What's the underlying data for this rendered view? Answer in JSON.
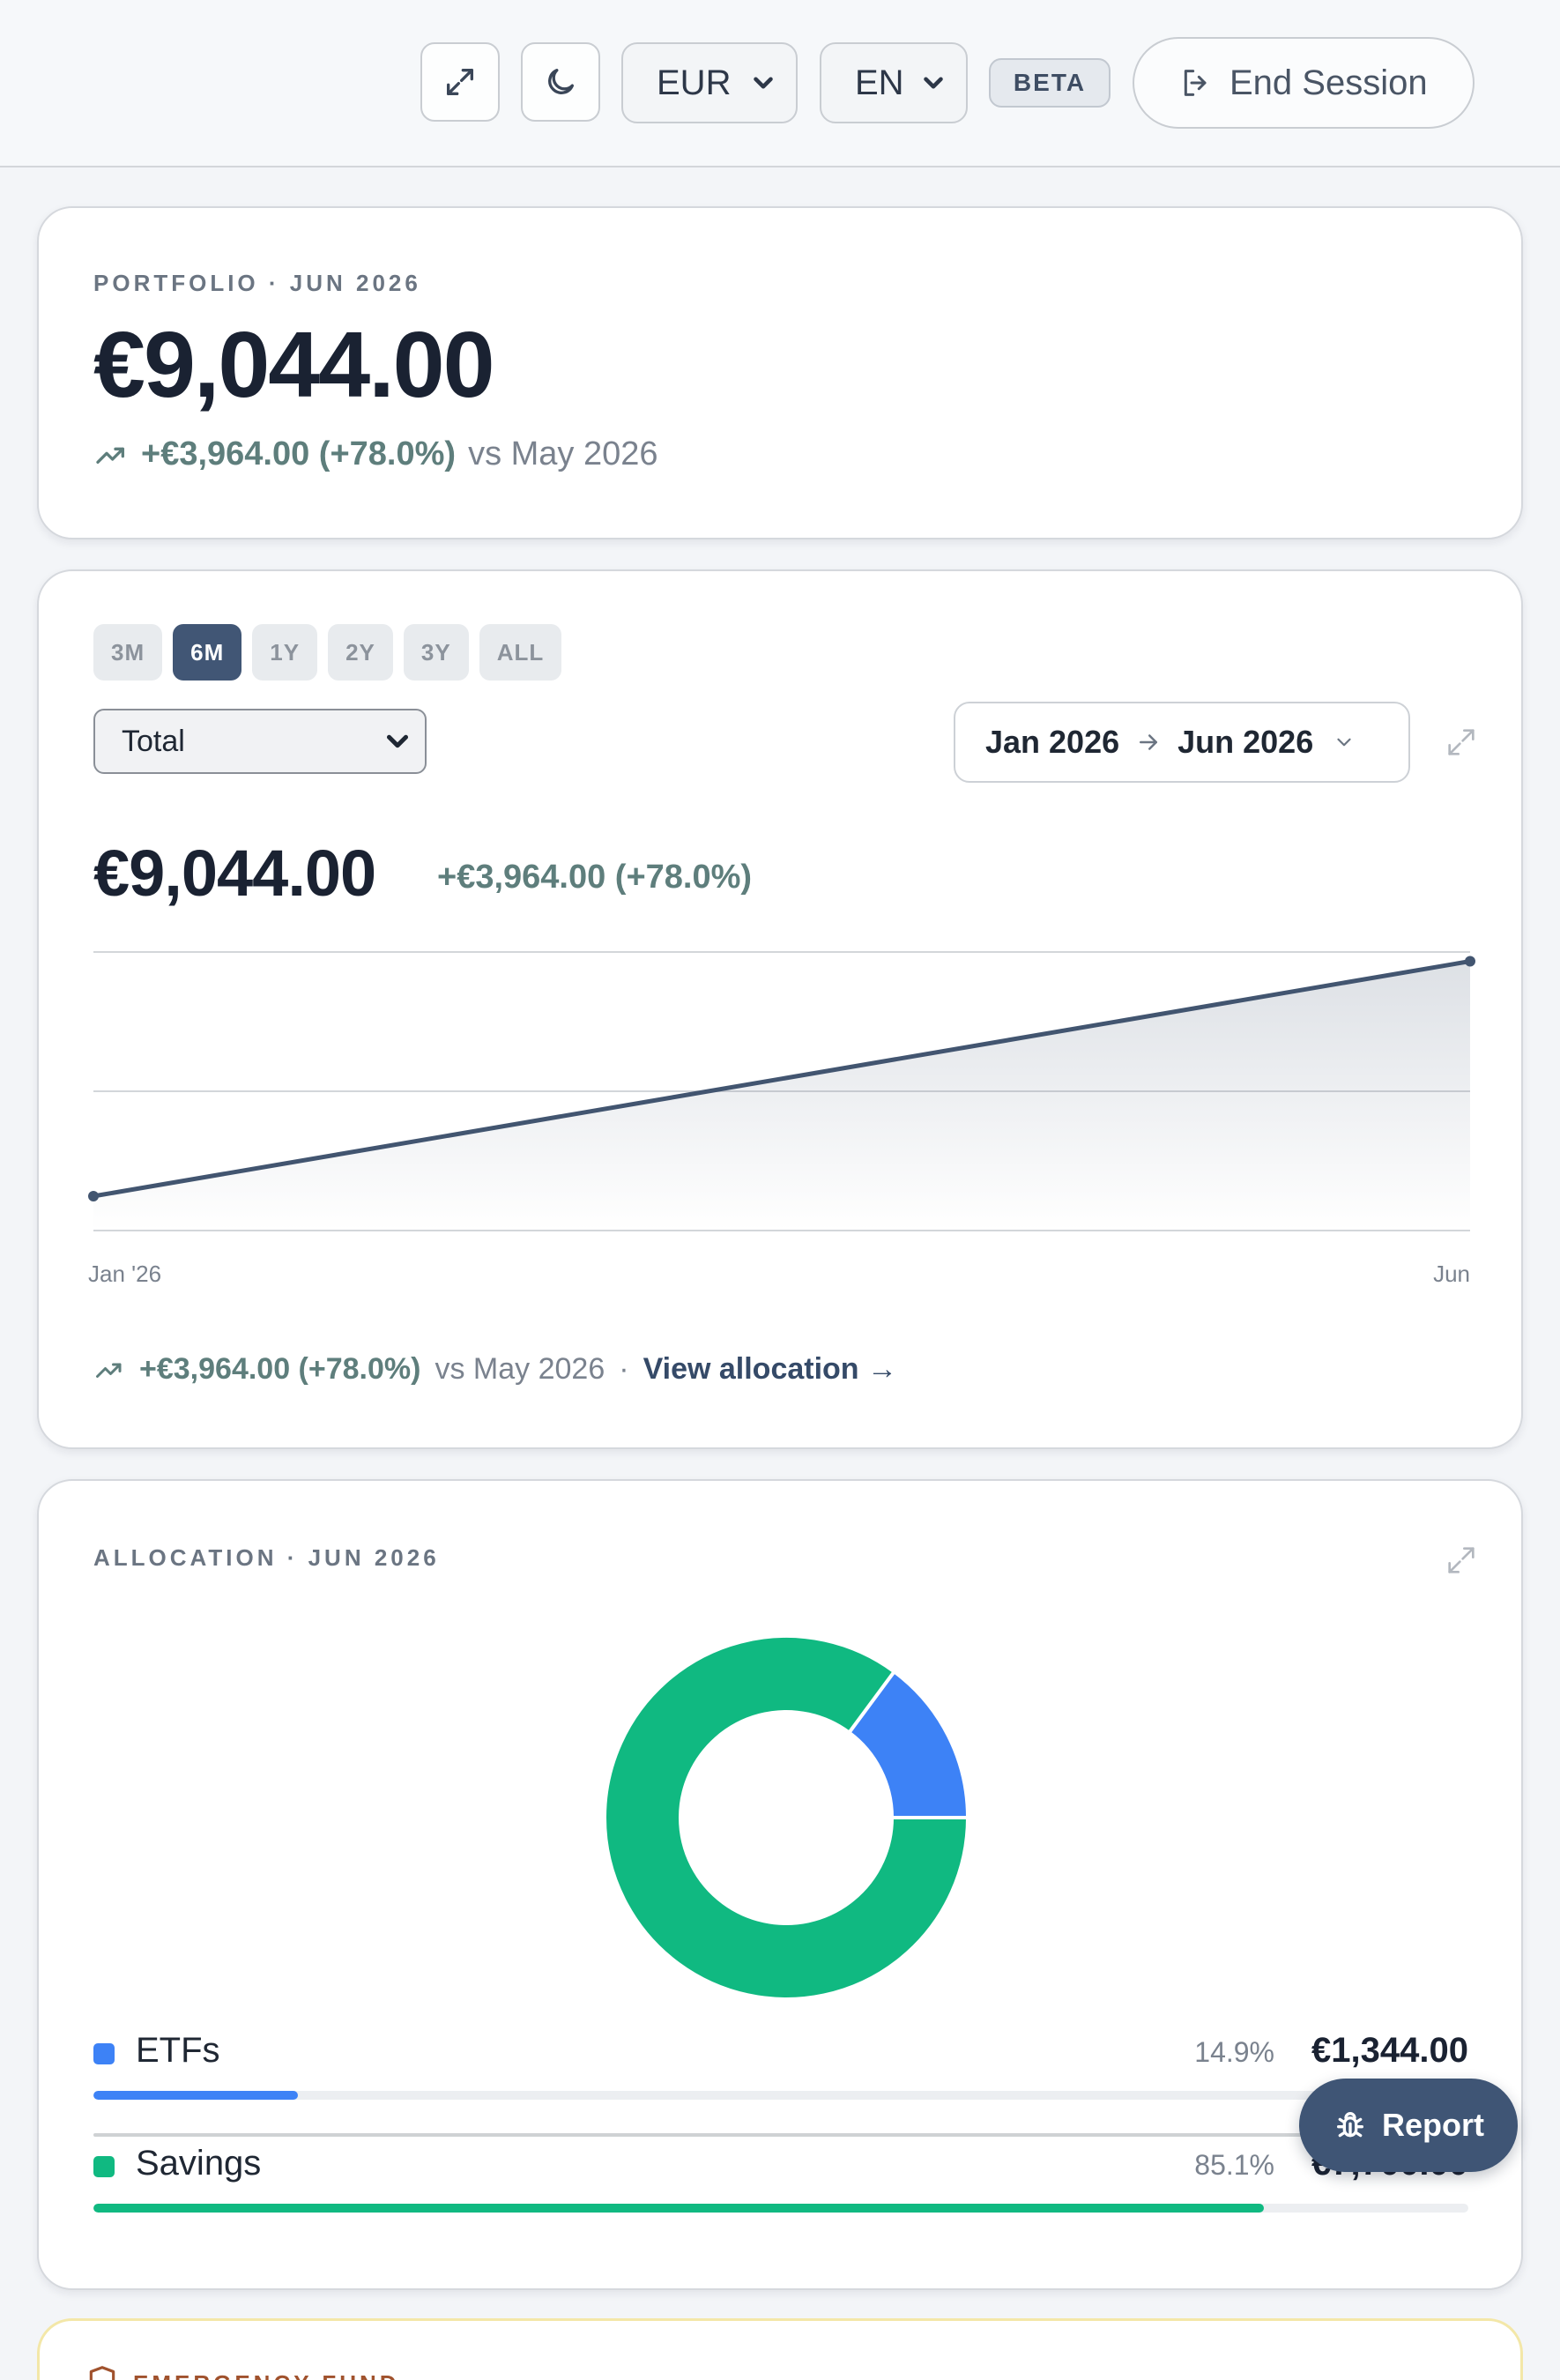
{
  "topbar": {
    "expand_icon": "expand-icon",
    "theme_icon": "moon-icon",
    "currency": "EUR",
    "language": "EN",
    "beta_label": "BETA",
    "end_session_label": "End Session",
    "end_session_icon": "logout-icon"
  },
  "portfolio": {
    "overline": "PORTFOLIO · JUN 2026",
    "amount": "€9,044.00",
    "gain": "+€3,964.00 (+78.0%)",
    "vs": "vs May 2026"
  },
  "performance": {
    "ranges": [
      "3M",
      "6M",
      "1Y",
      "2Y",
      "3Y",
      "ALL"
    ],
    "active_range": "6M",
    "series_select": "Total",
    "date_from": "Jan 2026",
    "date_to": "Jun 2026",
    "amount": "€9,044.00",
    "gain": "+€3,964.00 (+78.0%)",
    "footer_gain": "+€3,964.00 (+78.0%)",
    "footer_vs": "vs May 2026",
    "footer_sep": "·",
    "view_allocation": "View allocation →",
    "chart_data": {
      "type": "area",
      "x": [
        "Jan '26",
        "Jun"
      ],
      "values": [
        5080,
        9044
      ],
      "ylim": [
        4500,
        9200
      ],
      "grid": true,
      "color": "#425570"
    }
  },
  "allocation": {
    "overline": "ALLOCATION · JUN 2026",
    "chart_data": {
      "type": "pie",
      "donut": true,
      "categories": [
        "ETFs",
        "Savings"
      ],
      "values": [
        1344,
        7700
      ],
      "colors": [
        "#3d82f6",
        "#10b981"
      ]
    },
    "items": [
      {
        "label": "ETFs",
        "pct": "14.9%",
        "value": "€1,344.00",
        "share": 0.149,
        "color": "#3d82f6"
      },
      {
        "label": "Savings",
        "pct": "85.1%",
        "value": "€7,700.00",
        "share": 0.851,
        "color": "#10b981"
      }
    ]
  },
  "report_label": "Report",
  "emergency_overline": "EMERGENCY FUND"
}
